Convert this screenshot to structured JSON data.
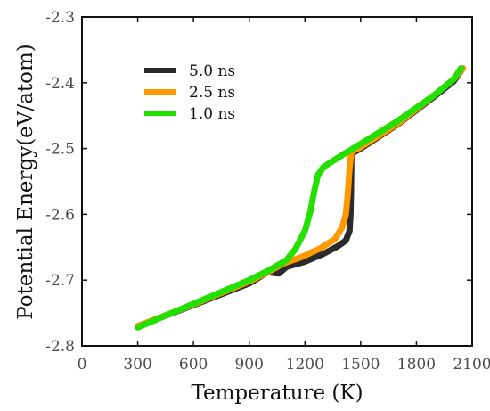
{
  "chart_data": {
    "type": "line",
    "xlabel": "Temperature (K)",
    "ylabel": "Potential Energy(eV/atom)",
    "xlim": [
      0,
      2100
    ],
    "ylim": [
      -2.8,
      -2.3
    ],
    "x_ticks": [
      0,
      300,
      600,
      900,
      1200,
      1500,
      1800,
      2100
    ],
    "y_ticks": [
      -2.8,
      -2.7,
      -2.6,
      -2.5,
      -2.4,
      -2.3
    ],
    "x_tick_labels": [
      "0",
      "300",
      "600",
      "900",
      "1200",
      "1500",
      "1800",
      "2100"
    ],
    "y_tick_labels": [
      "-2.8",
      "-2.7",
      "-2.6",
      "-2.5",
      "-2.4",
      "-2.3"
    ],
    "grid": false,
    "legend_position": "top-left",
    "series": [
      {
        "name": "5.0 ns",
        "color": "#2b2b2b",
        "points": [
          [
            300,
            -2.77
          ],
          [
            600,
            -2.738
          ],
          [
            900,
            -2.705
          ],
          [
            1000,
            -2.688
          ],
          [
            1060,
            -2.69
          ],
          [
            1100,
            -2.68
          ],
          [
            1200,
            -2.672
          ],
          [
            1300,
            -2.66
          ],
          [
            1380,
            -2.648
          ],
          [
            1420,
            -2.64
          ],
          [
            1440,
            -2.625
          ],
          [
            1445,
            -2.6
          ],
          [
            1448,
            -2.56
          ],
          [
            1450,
            -2.508
          ],
          [
            1500,
            -2.5
          ],
          [
            1700,
            -2.463
          ],
          [
            1900,
            -2.42
          ],
          [
            2000,
            -2.398
          ],
          [
            2050,
            -2.378
          ]
        ]
      },
      {
        "name": "2.5 ns",
        "color": "#ff9900",
        "points": [
          [
            300,
            -2.77
          ],
          [
            600,
            -2.737
          ],
          [
            900,
            -2.702
          ],
          [
            1000,
            -2.688
          ],
          [
            1080,
            -2.675
          ],
          [
            1180,
            -2.665
          ],
          [
            1280,
            -2.652
          ],
          [
            1360,
            -2.638
          ],
          [
            1400,
            -2.62
          ],
          [
            1420,
            -2.6
          ],
          [
            1430,
            -2.57
          ],
          [
            1440,
            -2.53
          ],
          [
            1450,
            -2.505
          ],
          [
            1500,
            -2.498
          ],
          [
            1700,
            -2.462
          ],
          [
            1900,
            -2.418
          ],
          [
            2000,
            -2.395
          ],
          [
            2050,
            -2.378
          ]
        ]
      },
      {
        "name": "1.0 ns",
        "color": "#22e000",
        "points": [
          [
            300,
            -2.772
          ],
          [
            600,
            -2.736
          ],
          [
            900,
            -2.7
          ],
          [
            1000,
            -2.686
          ],
          [
            1100,
            -2.67
          ],
          [
            1150,
            -2.652
          ],
          [
            1200,
            -2.625
          ],
          [
            1230,
            -2.595
          ],
          [
            1250,
            -2.565
          ],
          [
            1270,
            -2.54
          ],
          [
            1300,
            -2.528
          ],
          [
            1400,
            -2.51
          ],
          [
            1500,
            -2.493
          ],
          [
            1700,
            -2.458
          ],
          [
            1900,
            -2.418
          ],
          [
            2000,
            -2.395
          ],
          [
            2040,
            -2.378
          ]
        ]
      }
    ]
  }
}
